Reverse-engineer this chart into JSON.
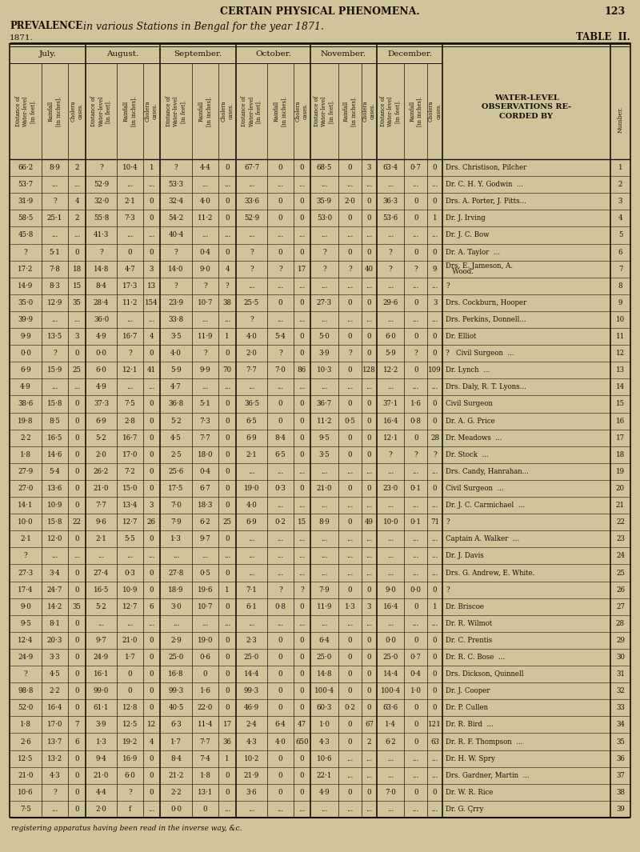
{
  "page_header": "CERTAIN PHYSICAL PHENOMENA.",
  "page_number": "123",
  "main_title_prefix": "PREVALENCE",
  "main_title_italic": " in various Stations in Bengal for the year 1871.",
  "year_label": "1871.",
  "table_label": "TABLE  II.",
  "bg_color": "#cfc49a",
  "text_color": "#1a1008",
  "month_headers": [
    "July.",
    "August.",
    "September.",
    "October.",
    "November.",
    "December."
  ],
  "sub_labels": [
    "Distance of\nWater-level\n[in feet].",
    "Rainfall\n[in inches].",
    "Cholera\ncases."
  ],
  "water_level_header": "WATER-LEVEL\nOBSERVATIONS RE-\nCORDED BY",
  "number_header": "Number.",
  "rows": [
    [
      "66·2",
      "8·9",
      "2",
      "?",
      "10·4",
      "1",
      "?",
      "4·4",
      "0",
      "67·7",
      "0",
      "0",
      "68·5",
      "0",
      "3",
      "63·4",
      "0·7",
      "0",
      "Drs. Christison, Pilcher",
      "1"
    ],
    [
      "53·7",
      "...",
      "...",
      "52·9",
      "...",
      "...",
      "53·3",
      "...",
      "...",
      "...",
      "...",
      "...",
      "...",
      "...",
      "...",
      "...",
      "...",
      "...",
      "Dr. C. H. Y. Godwin  ...",
      "2"
    ],
    [
      "31·9",
      "?",
      "4",
      "32·0",
      "2·1",
      "0",
      "32·4",
      "4·0",
      "0",
      "33·6",
      "0",
      "0",
      "35·9",
      "2·0",
      "0",
      "36·3",
      "0",
      "0",
      "Drs. A. Porter, J. Pitts...",
      "3"
    ],
    [
      "58·5",
      "25·1",
      "2",
      "55·8",
      "7·3",
      "0",
      "54·2",
      "11·2",
      "0",
      "52·9",
      "0",
      "0",
      "53·0",
      "0",
      "0",
      "53·6",
      "0",
      "1",
      "Dr. J. Irving",
      "4"
    ],
    [
      "45·8",
      "...",
      "...",
      "41·3",
      "...",
      "...",
      "40·4",
      "...",
      "...",
      "...",
      "...",
      "...",
      "...",
      "...",
      "...",
      "...",
      "...",
      "...",
      "Dr. J. C. Bow",
      "5"
    ],
    [
      "?",
      "5·1",
      "0",
      "?",
      "0",
      "0",
      "?",
      "0·4",
      "0",
      "?",
      "0",
      "0",
      "?",
      "0",
      "0",
      "?",
      "0",
      "0",
      "Dr. A. Taylor  ...",
      "6"
    ],
    [
      "17·2",
      "7·8",
      "18",
      "14·8",
      "4·7",
      "3",
      "14·0",
      "9·0",
      "4",
      "?",
      "?",
      "17",
      "?",
      "?",
      "40",
      "?",
      "?",
      "9",
      "Drs. E. Jameson, A.\n   Wood.",
      "7"
    ],
    [
      "14·9",
      "8·3",
      "15",
      "8·4",
      "17·3",
      "13",
      "?",
      "?",
      "?",
      "...",
      "...",
      "...",
      "...",
      "...",
      "...",
      "...",
      "...",
      "...",
      "?",
      "8"
    ],
    [
      "35·0",
      "12·9",
      "35",
      "28·4",
      "11·2",
      "154",
      "23·9",
      "10·7",
      "38",
      "25·5",
      "0",
      "0",
      "27·3",
      "0",
      "0",
      "29·6",
      "0",
      "3",
      "Drs. Cockburn, Hooper",
      "9"
    ],
    [
      "39·9",
      "...",
      "...",
      "36·0",
      "...",
      "...",
      "33·8",
      "...",
      "...",
      "?",
      "...",
      "...",
      "...",
      "...",
      "...",
      "...",
      "...",
      "...",
      "Drs. Perkins, Donnell...",
      "10"
    ],
    [
      "9·9",
      "13·5",
      "3",
      "4·9",
      "16·7",
      "4",
      "3·5",
      "11·9",
      "1",
      "4·0",
      "5·4",
      "0",
      "5·0",
      "0",
      "0",
      "6·0",
      "0",
      "0",
      "Dr. Elliot",
      "11"
    ],
    [
      "0·0",
      "?",
      "0",
      "0·0",
      "?",
      "0",
      "4·0",
      "?",
      "0",
      "2·0",
      "?",
      "0",
      "3·9",
      "?",
      "0",
      "5·9",
      "?",
      "0",
      "?   Civil Surgeon  ...",
      "12"
    ],
    [
      "6·9",
      "15·9",
      "25",
      "6·0",
      "12·1",
      "41",
      "5·9",
      "9·9",
      "70",
      "7·7",
      "7·0",
      "86",
      "10·3",
      "0",
      "128",
      "12·2",
      "0",
      "109",
      "Dr. Lynch  ...",
      "13"
    ],
    [
      "4·9",
      "...",
      "...",
      "4·9",
      "...",
      "...",
      "4·7",
      "...",
      "...",
      "...",
      "...",
      "...",
      "...",
      "...",
      "...",
      "...",
      "...",
      "...",
      "Drs. Daly, R. T. Lyons...",
      "14"
    ],
    [
      "38·6",
      "15·8",
      "0",
      "37·3",
      "7·5",
      "0",
      "36·8",
      "5·1",
      "0",
      "36·5",
      "0",
      "0",
      "36·7",
      "0",
      "0",
      "37·1",
      "1·6",
      "0",
      "Civil Surgeon",
      "15"
    ],
    [
      "19·8",
      "8·5",
      "0",
      "6·9",
      "2·8",
      "0",
      "5·2",
      "7·3",
      "0",
      "6·5",
      "0",
      "0",
      "11·2",
      "0·5",
      "0",
      "16·4",
      "0·8",
      "0",
      "Dr. A. G. Price",
      "16"
    ],
    [
      "2·2",
      "16·5",
      "0",
      "5·2",
      "16·7",
      "0",
      "4·5",
      "7·7",
      "0",
      "6·9",
      "8·4",
      "0",
      "9·5",
      "0",
      "0",
      "12·1",
      "0",
      "28",
      "Dr. Meadows  ...",
      "17"
    ],
    [
      "1·8",
      "14·6",
      "0",
      "2·0",
      "17·0",
      "0",
      "2·5",
      "18·0",
      "0",
      "2·1",
      "6·5",
      "0",
      "3·5",
      "0",
      "0",
      "?",
      "?",
      "?",
      "Dr. Stock  ...",
      "18"
    ],
    [
      "27·9",
      "5·4",
      "0",
      "26·2",
      "7·2",
      "0",
      "25·6",
      "0·4",
      "0",
      "...",
      "...",
      "...",
      "...",
      "...",
      "...",
      "...",
      "...",
      "...",
      "Drs. Candy, Hanrahan...",
      "19"
    ],
    [
      "27·0",
      "13·6",
      "0",
      "21·0",
      "15·0",
      "0",
      "17·5",
      "6·7",
      "0",
      "19·0",
      "0·3",
      "0",
      "21·0",
      "0",
      "0",
      "23·0",
      "0·1",
      "0",
      "Civil Surgeon  ...",
      "20"
    ],
    [
      "14·1",
      "10·9",
      "0",
      "7·7",
      "13·4",
      "3",
      "7·0",
      "18·3",
      "0",
      "4·0",
      "...",
      "...",
      "...",
      "...",
      "...",
      "...",
      "...",
      "...",
      "Dr. J. C. Carmichael  ...",
      "21"
    ],
    [
      "10·0",
      "15·8",
      "22",
      "9·6",
      "12·7",
      "26",
      "7·9",
      "6·2",
      "25",
      "6·9",
      "0·2",
      "15",
      "8·9",
      "0",
      "49",
      "10·0",
      "0·1",
      "71",
      "?",
      "22"
    ],
    [
      "2·1",
      "12·0",
      "0",
      "2·1",
      "5·5",
      "0",
      "1·3",
      "9·7",
      "0",
      "...",
      "...",
      "...",
      "...",
      "...",
      "...",
      "...",
      "...",
      "...",
      "Captain A. Walker  ...",
      "23"
    ],
    [
      "?",
      "...",
      "...",
      "...",
      "...",
      "...",
      "...",
      "...",
      "...",
      "...",
      "...",
      "...",
      "...",
      "...",
      "...",
      "...",
      "...",
      "...",
      "Dr. J. Davis",
      "24"
    ],
    [
      "27·3",
      "3·4",
      "0",
      "27·4",
      "0·3",
      "0",
      "27·8",
      "0·5",
      "0",
      "...",
      "...",
      "...",
      "...",
      "...",
      "...",
      "...",
      "...",
      "...",
      "Drs. G. Andrew, E. White.",
      "25"
    ],
    [
      "17·4",
      "24·7",
      "0",
      "16·5",
      "10·9",
      "0",
      "18·9",
      "19·6",
      "1",
      "7·1",
      "?",
      "?",
      "7·9",
      "0",
      "0",
      "9·0",
      "0·0",
      "0",
      "?",
      "26"
    ],
    [
      "9·0",
      "14·2",
      "35",
      "5·2",
      "12·7",
      "6",
      "3·0",
      "10·7",
      "0",
      "6·1",
      "0·8",
      "0",
      "11·9",
      "1·3",
      "3",
      "16·4",
      "0",
      "1",
      "Dr. Briscoe",
      "27"
    ],
    [
      "9·5",
      "8·1",
      "0",
      "...",
      "...",
      "...",
      "...",
      "...",
      "...",
      "...",
      "...",
      "...",
      "...",
      "...",
      "...",
      "...",
      "...",
      "...",
      "Dr. R. Wilmot",
      "28"
    ],
    [
      "12·4",
      "20·3",
      "0",
      "9·7",
      "21·0",
      "0",
      "2·9",
      "19·0",
      "0",
      "2·3",
      "0",
      "0",
      "6·4",
      "0",
      "0",
      "0·0",
      "0",
      "0",
      "Dr. C. Prentis",
      "29"
    ],
    [
      "24·9",
      "3·3",
      "0",
      "24·9",
      "1·7",
      "0",
      "25·0",
      "0·6",
      "0",
      "25·0",
      "0",
      "0",
      "25·0",
      "0",
      "0",
      "25·0",
      "0·7",
      "0",
      "Dr. R. C. Bose  ...",
      "30"
    ],
    [
      "?",
      "4·5",
      "0",
      "16·1",
      "0",
      "0",
      "16·8",
      "0",
      "0",
      "14·4",
      "0",
      "0",
      "14·8",
      "0",
      "0",
      "14·4",
      "0·4",
      "0",
      "Drs. Dickson, Quinnell",
      "31"
    ],
    [
      "98·8",
      "2·2",
      "0",
      "99·0",
      "0",
      "0",
      "99·3",
      "1·6",
      "0",
      "99·3",
      "0",
      "0",
      "100·4",
      "0",
      "0",
      "100·4",
      "1·0",
      "0",
      "Dr. J. Cooper",
      "32"
    ],
    [
      "52·0",
      "16·4",
      "0",
      "61·1",
      "12·8",
      "0",
      "40·5",
      "22·0",
      "0",
      "46·9",
      "0",
      "0",
      "60·3",
      "0·2",
      "0",
      "63·6",
      "0",
      "0",
      "Dr. P. Cullen",
      "33"
    ],
    [
      "1·8",
      "17·0",
      "7",
      "3·9",
      "12·5",
      "12",
      "6·3",
      "11·4",
      "17",
      "2·4",
      "6·4",
      "47",
      "1·0",
      "0",
      "67",
      "1·4",
      "0",
      "121",
      "Dr. R. Bird  ...",
      "34"
    ],
    [
      "2·6",
      "13·7",
      "6",
      "1·3",
      "19·2",
      "4",
      "1·7",
      "7·7",
      "36",
      "4·3",
      "4·0",
      "650",
      "4·3",
      "0",
      "2",
      "6·2",
      "0",
      "63",
      "Dr. R. F. Thompson  ...",
      "35"
    ],
    [
      "12·5",
      "13·2",
      "0",
      "9·4",
      "16·9",
      "0",
      "8·4",
      "7·4",
      "1",
      "10·2",
      "0",
      "0",
      "10·6",
      "...",
      "...",
      "...",
      "...",
      "...",
      "Dr. H. W. Spry",
      "36"
    ],
    [
      "21·0",
      "4·3",
      "0",
      "21·0",
      "6·0",
      "0",
      "21·2",
      "1·8",
      "0",
      "21·9",
      "0",
      "0",
      "22·1",
      "...",
      "...",
      "...",
      "...",
      "...",
      "Drs. Gardner, Martin  ...",
      "37"
    ],
    [
      "10·6",
      "?",
      "0",
      "4·4",
      "?",
      "0",
      "2·2",
      "13·1",
      "0",
      "3·6",
      "0",
      "0",
      "4·9",
      "0",
      "0",
      "7·0",
      "0",
      "0",
      "Dr. W. R. Rice",
      "38"
    ],
    [
      "7·5",
      "...",
      "0",
      "2·0",
      "f",
      "...",
      "0·0",
      "0",
      "...",
      "...",
      "...",
      "...",
      "...",
      "...",
      "...",
      "...",
      "...",
      "...",
      "Dr. G. Çrry",
      "39"
    ]
  ],
  "footer": "registering apparatus having been read in the inverse way, &c."
}
